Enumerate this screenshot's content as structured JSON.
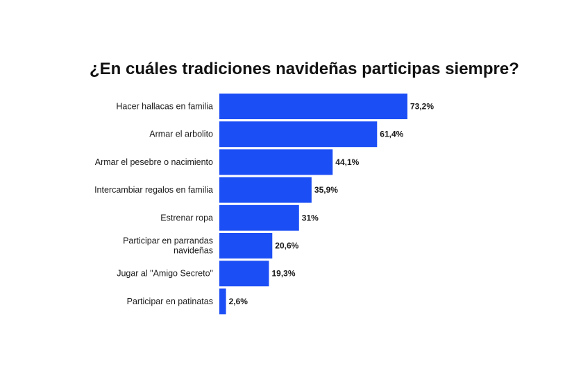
{
  "chart_data": {
    "type": "bar",
    "orientation": "horizontal",
    "title": "¿En cuáles tradiciones navideñas participas siempre?",
    "categories": [
      "Hacer hallacas en familia",
      "Armar el arbolito",
      "Armar el pesebre o nacimiento",
      "Intercambiar regalos en familia",
      "Estrenar ropa",
      "Participar en parrandas navideñas",
      "Jugar al \"Amigo Secreto\"",
      "Participar en patinatas"
    ],
    "category_lines": [
      [
        "Hacer hallacas en familia"
      ],
      [
        "Armar el arbolito"
      ],
      [
        "Armar el pesebre o nacimiento"
      ],
      [
        "Intercambiar regalos en familia"
      ],
      [
        "Estrenar ropa"
      ],
      [
        "Participar en parrandas",
        "navideñas"
      ],
      [
        "Jugar al \"Amigo Secreto\""
      ],
      [
        "Participar en patinatas"
      ]
    ],
    "values": [
      73.2,
      61.4,
      44.1,
      35.9,
      31,
      20.6,
      19.3,
      2.6
    ],
    "value_labels": [
      "73,2%",
      "61,4%",
      "44,1%",
      "35,9%",
      "31%",
      "20,6%",
      "19,3%",
      "2,6%"
    ],
    "unit": "%",
    "xlim": [
      0,
      100
    ],
    "grid": false,
    "legend": "none",
    "bar_color": "#1c4ef5"
  }
}
